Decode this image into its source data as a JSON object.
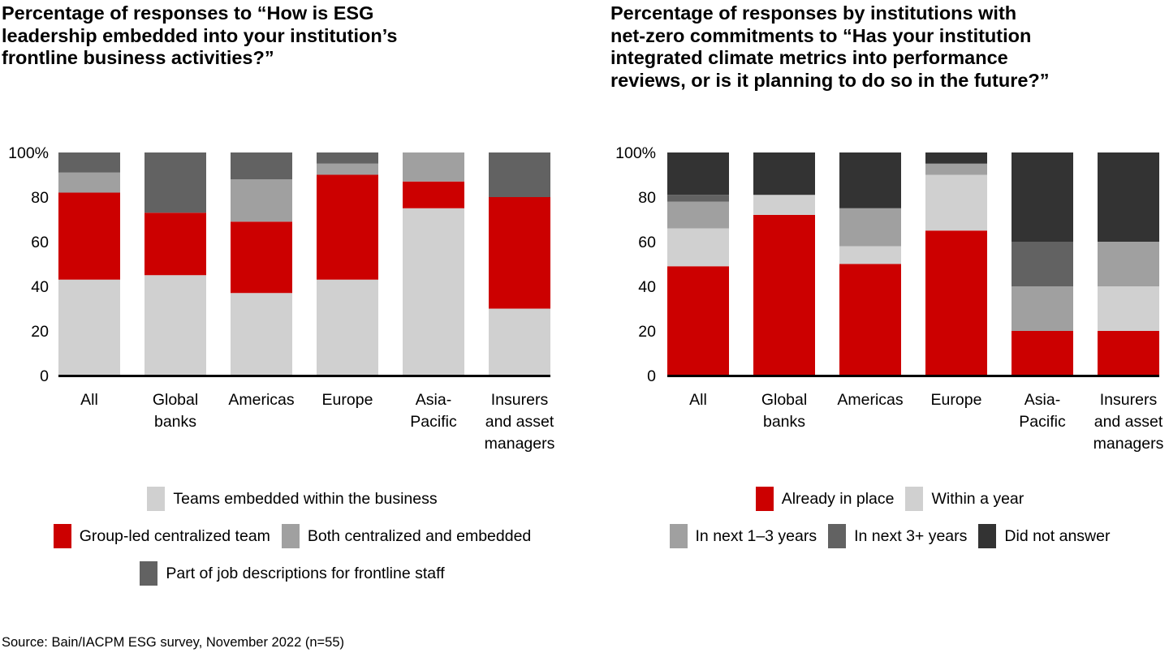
{
  "source": "Source: Bain/IACPM ESG survey, November 2022 (n=55)",
  "colors": {
    "red": "#cc0000",
    "light_gray": "#d0d0d0",
    "mid_gray": "#a0a0a0",
    "dark_gray": "#626262",
    "charcoal": "#333333"
  },
  "chart_data": [
    {
      "type": "bar",
      "stacked": true,
      "title": "Percentage of responses to “How is ESG leadership embedded into your institution’s frontline business activities?”",
      "title_lines": [
        "Percentage of responses to “How is ESG",
        "leadership embedded into your institution’s",
        "frontline business activities?”"
      ],
      "xlabel": "",
      "ylabel": "",
      "ylim": [
        0,
        100
      ],
      "yticks": [
        "0",
        "20",
        "40",
        "60",
        "80",
        "100%"
      ],
      "ytick_values": [
        0,
        20,
        40,
        60,
        80,
        100
      ],
      "grid": false,
      "legend_position": "bottom",
      "categories": [
        "All",
        "Global banks",
        "Americas",
        "Europe",
        "Asia-Pacific",
        "Insurers and asset managers"
      ],
      "category_lines": [
        [
          "All"
        ],
        [
          "Global",
          "banks"
        ],
        [
          "Americas"
        ],
        [
          "Europe"
        ],
        [
          "Asia-",
          "Pacific"
        ],
        [
          "Insurers",
          "and asset",
          "managers"
        ]
      ],
      "series": [
        {
          "name": "Teams embedded within the business",
          "color": "#d0d0d0",
          "values": [
            43,
            45,
            37,
            43,
            75,
            30
          ]
        },
        {
          "name": "Group-led centralized team",
          "color": "#cc0000",
          "values": [
            39,
            28,
            32,
            47,
            12,
            50
          ]
        },
        {
          "name": "Both centralized and embedded",
          "color": "#a0a0a0",
          "values": [
            9,
            0,
            19,
            5,
            13,
            0
          ]
        },
        {
          "name": "Part of job descriptions for frontline staff",
          "color": "#626262",
          "values": [
            9,
            27,
            12,
            5,
            0,
            20
          ]
        }
      ],
      "legend_rows": [
        [
          0
        ],
        [
          1,
          2
        ],
        [
          3
        ]
      ]
    },
    {
      "type": "bar",
      "stacked": true,
      "title": "Percentage of responses by institutions with net-zero commitments to “Has your institution integrated climate metrics into performance reviews, or is it planning to do so in the future?”",
      "title_lines": [
        "Percentage of responses by institutions with",
        "net-zero commitments to “Has your institution",
        "integrated climate metrics into performance",
        "reviews, or is it planning to do so in the future?”"
      ],
      "xlabel": "",
      "ylabel": "",
      "ylim": [
        0,
        100
      ],
      "yticks": [
        "0",
        "20",
        "40",
        "60",
        "80",
        "100%"
      ],
      "ytick_values": [
        0,
        20,
        40,
        60,
        80,
        100
      ],
      "grid": false,
      "legend_position": "bottom",
      "categories": [
        "All",
        "Global banks",
        "Americas",
        "Europe",
        "Asia-Pacific",
        "Insurers and asset managers"
      ],
      "category_lines": [
        [
          "All"
        ],
        [
          "Global",
          "banks"
        ],
        [
          "Americas"
        ],
        [
          "Europe"
        ],
        [
          "Asia-",
          "Pacific"
        ],
        [
          "Insurers",
          "and asset",
          "managers"
        ]
      ],
      "series": [
        {
          "name": "Already in place",
          "color": "#cc0000",
          "values": [
            49,
            72,
            50,
            65,
            20,
            20
          ]
        },
        {
          "name": "Within a year",
          "color": "#d0d0d0",
          "values": [
            17,
            9,
            8,
            25,
            0,
            20
          ]
        },
        {
          "name": "In next 1–3 years",
          "color": "#a0a0a0",
          "values": [
            12,
            0,
            17,
            5,
            20,
            20
          ]
        },
        {
          "name": "In next 3+ years",
          "color": "#626262",
          "values": [
            3,
            0,
            0,
            0,
            20,
            0
          ]
        },
        {
          "name": "Did not answer",
          "color": "#333333",
          "values": [
            19,
            19,
            25,
            5,
            40,
            40
          ]
        }
      ],
      "legend_rows": [
        [
          0,
          1
        ],
        [
          2,
          3,
          4
        ]
      ]
    }
  ]
}
